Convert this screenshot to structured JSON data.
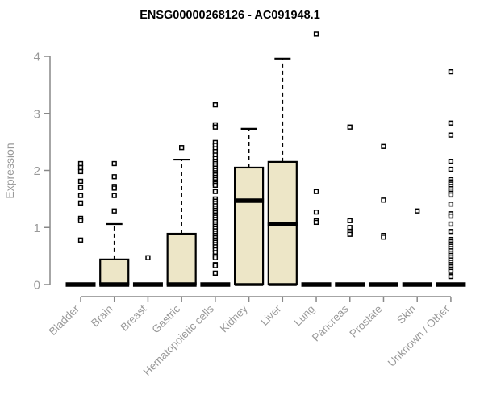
{
  "title": "ENSG00000268126 - AC091948.1",
  "chart_data": {
    "type": "boxplot",
    "title": "ENSG00000268126 - AC091948.1",
    "xlabel": "",
    "ylabel": "Expression",
    "ylim": [
      0,
      4
    ],
    "yticks": [
      0,
      1,
      2,
      3,
      4
    ],
    "grid": false,
    "legend": "none",
    "point_style": "open-square",
    "colors": {
      "box_fill": "#EDE6C7",
      "box_stroke": "#000000",
      "median": "#000000",
      "whisker": "#000000",
      "point_stroke": "#000000",
      "point_fill": "#ffffff",
      "axis": "#888888",
      "tick_label": "#999999",
      "axis_label": "#999999",
      "title_color": "#000000",
      "background": "#ffffff"
    },
    "categories": [
      "Bladder",
      "Brain",
      "Breast",
      "Gastric",
      "Hematopoietic cells",
      "Kidney",
      "Liver",
      "Lung",
      "Pancreas",
      "Prostate",
      "Skin",
      "Unknown / Other"
    ],
    "series": [
      {
        "category": "Bladder",
        "slug": "bladder",
        "q1": 0,
        "median": 0,
        "q3": 0,
        "whisker_high": null,
        "outliers": [
          2.12,
          2.05,
          1.98,
          1.81,
          1.7,
          1.56,
          1.43,
          1.16,
          1.12,
          0.78
        ]
      },
      {
        "category": "Brain",
        "slug": "brain",
        "q1": 0,
        "median": 0,
        "q3": 0.44,
        "whisker_high": 1.06,
        "outliers": [
          2.12,
          1.89,
          1.72,
          1.69,
          1.56,
          1.29
        ]
      },
      {
        "category": "Breast",
        "slug": "breast",
        "q1": 0,
        "median": 0,
        "q3": 0,
        "whisker_high": null,
        "outliers": [
          0.47
        ]
      },
      {
        "category": "Gastric",
        "slug": "gastric",
        "q1": 0,
        "median": 0,
        "q3": 0.89,
        "whisker_high": 2.19,
        "outliers": [
          2.4
        ]
      },
      {
        "category": "Hematopoietic cells",
        "slug": "hematopoietic-cells",
        "q1": 0,
        "median": 0,
        "q3": 0,
        "whisker_high": null,
        "outliers": [
          3.15,
          2.8,
          2.76,
          2.49,
          2.44,
          2.38,
          2.33,
          2.27,
          2.21,
          2.16,
          2.12,
          2.08,
          2.04,
          2.0,
          1.96,
          1.92,
          1.88,
          1.84,
          1.8,
          1.77,
          1.74,
          1.63,
          1.5,
          1.46,
          1.42,
          1.38,
          1.34,
          1.3,
          1.26,
          1.22,
          1.18,
          1.14,
          1.1,
          1.06,
          1.02,
          0.98,
          0.94,
          0.9,
          0.86,
          0.82,
          0.78,
          0.74,
          0.7,
          0.66,
          0.61,
          0.56,
          0.5,
          0.47,
          0.35,
          0.33,
          0.2
        ]
      },
      {
        "category": "Kidney",
        "slug": "kidney",
        "q1": 0,
        "median": 1.47,
        "q3": 2.05,
        "whisker_high": 2.73,
        "outliers": []
      },
      {
        "category": "Liver",
        "slug": "liver",
        "q1": 0,
        "median": 1.06,
        "q3": 2.15,
        "whisker_high": 3.96,
        "outliers": []
      },
      {
        "category": "Lung",
        "slug": "lung",
        "q1": 0,
        "median": 0,
        "q3": 0,
        "whisker_high": null,
        "outliers": [
          4.39,
          1.63,
          1.27,
          1.12,
          1.09
        ]
      },
      {
        "category": "Pancreas",
        "slug": "pancreas",
        "q1": 0,
        "median": 0,
        "q3": 0,
        "whisker_high": null,
        "outliers": [
          2.76,
          1.12,
          1.0,
          0.93,
          0.88
        ]
      },
      {
        "category": "Prostate",
        "slug": "prostate",
        "q1": 0,
        "median": 0,
        "q3": 0,
        "whisker_high": null,
        "outliers": [
          2.42,
          1.48,
          0.86,
          0.83
        ]
      },
      {
        "category": "Skin",
        "slug": "skin",
        "q1": 0,
        "median": 0,
        "q3": 0,
        "whisker_high": null,
        "outliers": [
          1.29
        ]
      },
      {
        "category": "Unknown / Other",
        "slug": "unknown-other",
        "q1": 0,
        "median": 0,
        "q3": 0,
        "whisker_high": null,
        "outliers": [
          3.73,
          2.83,
          2.62,
          2.16,
          2.02,
          1.84,
          1.8,
          1.76,
          1.72,
          1.68,
          1.64,
          1.6,
          1.57,
          1.41,
          1.24,
          1.2,
          1.06,
          0.93,
          0.79,
          0.75,
          0.71,
          0.67,
          0.63,
          0.59,
          0.55,
          0.51,
          0.47,
          0.43,
          0.39,
          0.35,
          0.31,
          0.27,
          0.23,
          0.14
        ]
      }
    ]
  }
}
